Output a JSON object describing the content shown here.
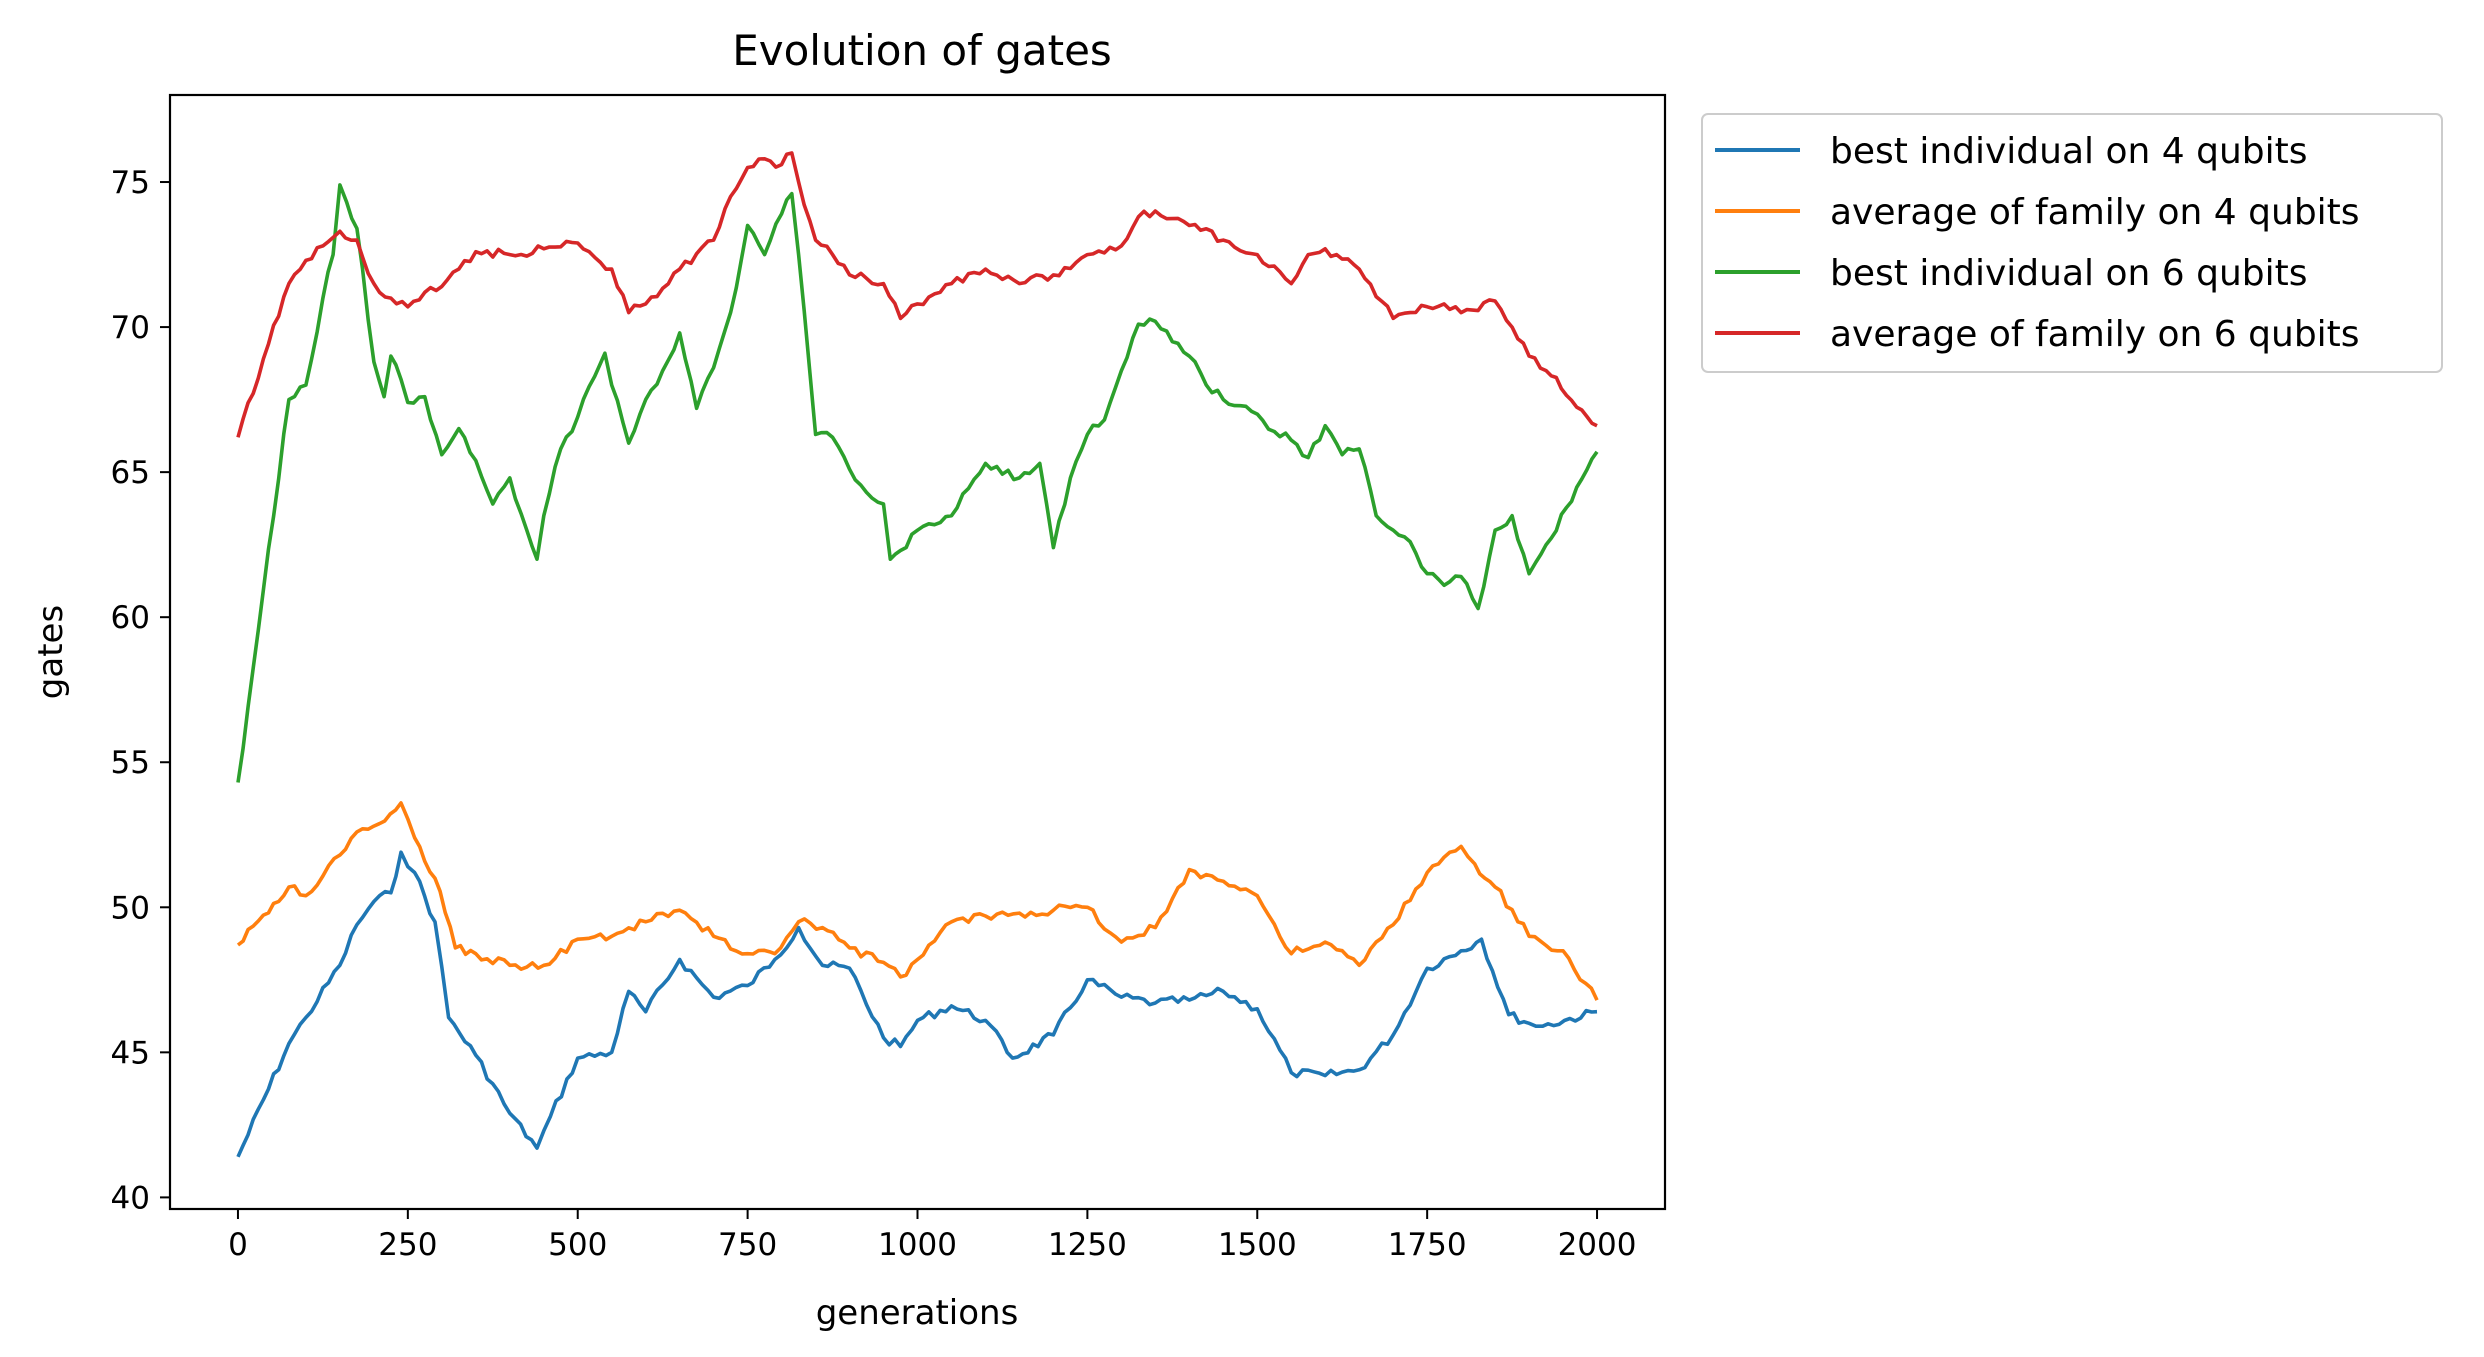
{
  "chart_data": {
    "type": "line",
    "title": "Evolution of gates",
    "xlabel": "generations",
    "ylabel": "gates",
    "xlim": [
      -100,
      2100
    ],
    "ylim": [
      39.6,
      78.0
    ],
    "xticks": [
      0,
      250,
      500,
      750,
      1000,
      1250,
      1500,
      1750,
      2000
    ],
    "yticks": [
      40,
      45,
      50,
      55,
      60,
      65,
      70,
      75
    ],
    "grid": false,
    "legend_position": "outside-top-right",
    "series": [
      {
        "name": "best individual on 4 qubits",
        "color": "#1f77b4",
        "x": [
          0,
          75,
          100,
          150,
          175,
          200,
          225,
          240,
          260,
          290,
          310,
          350,
          400,
          440,
          460,
          500,
          550,
          575,
          600,
          650,
          700,
          750,
          790,
          825,
          860,
          900,
          950,
          975,
          1000,
          1050,
          1100,
          1140,
          1200,
          1250,
          1300,
          1350,
          1400,
          1450,
          1500,
          1550,
          1600,
          1650,
          1700,
          1750,
          1800,
          1830,
          1870,
          1900,
          1920,
          2000
        ],
        "y": [
          41.4,
          45.3,
          46.2,
          48.0,
          49.4,
          50.2,
          50.5,
          51.9,
          51.2,
          49.5,
          46.2,
          44.9,
          42.9,
          41.7,
          42.8,
          44.8,
          45.0,
          47.1,
          46.4,
          48.2,
          46.9,
          47.3,
          48.2,
          49.3,
          48.0,
          47.9,
          45.5,
          45.2,
          46.1,
          46.6,
          46.1,
          44.8,
          45.6,
          47.5,
          46.9,
          46.7,
          46.8,
          47.1,
          46.5,
          44.3,
          44.2,
          44.4,
          45.6,
          47.9,
          48.5,
          48.9,
          46.3,
          46.0,
          45.9,
          46.4
        ]
      },
      {
        "name": "average of family on 4 qubits",
        "color": "#ff7f0e",
        "x": [
          0,
          75,
          100,
          150,
          175,
          200,
          240,
          260,
          290,
          320,
          350,
          400,
          450,
          500,
          550,
          600,
          650,
          700,
          750,
          790,
          825,
          860,
          900,
          950,
          975,
          1000,
          1050,
          1100,
          1150,
          1200,
          1250,
          1300,
          1350,
          1400,
          1450,
          1500,
          1550,
          1600,
          1650,
          1700,
          1750,
          1800,
          1820,
          1850,
          1900,
          1950,
          2000
        ],
        "y": [
          48.7,
          50.7,
          50.4,
          51.8,
          52.6,
          52.8,
          53.6,
          52.4,
          51.0,
          48.6,
          48.4,
          48.0,
          48.0,
          48.9,
          49.0,
          49.5,
          49.9,
          49.0,
          48.4,
          48.4,
          49.5,
          49.3,
          48.6,
          48.1,
          47.6,
          48.2,
          49.5,
          49.7,
          49.8,
          49.9,
          50.0,
          48.8,
          49.3,
          51.3,
          50.9,
          50.4,
          48.4,
          48.8,
          48.0,
          49.4,
          51.2,
          52.1,
          51.5,
          50.7,
          49.0,
          48.5,
          46.8
        ]
      },
      {
        "name": "best individual on 6 qubits",
        "color": "#2ca02c",
        "x": [
          0,
          75,
          100,
          125,
          140,
          150,
          160,
          175,
          200,
          215,
          225,
          240,
          250,
          275,
          300,
          325,
          350,
          375,
          400,
          425,
          440,
          450,
          475,
          500,
          525,
          540,
          550,
          575,
          600,
          625,
          650,
          675,
          700,
          725,
          750,
          775,
          800,
          815,
          825,
          850,
          875,
          900,
          925,
          950,
          960,
          975,
          1000,
          1050,
          1100,
          1150,
          1180,
          1200,
          1225,
          1250,
          1275,
          1300,
          1325,
          1350,
          1375,
          1400,
          1425,
          1450,
          1500,
          1525,
          1550,
          1575,
          1600,
          1625,
          1650,
          1675,
          1700,
          1725,
          1750,
          1775,
          1800,
          1825,
          1850,
          1875,
          1900,
          1910,
          1925,
          2000
        ],
        "y": [
          54.3,
          67.5,
          68.0,
          71.0,
          72.5,
          74.9,
          74.3,
          73.4,
          68.8,
          67.6,
          69.0,
          68.2,
          67.4,
          67.6,
          65.6,
          66.5,
          65.4,
          63.9,
          64.8,
          63.0,
          62.0,
          63.5,
          65.8,
          66.9,
          68.3,
          69.1,
          68.0,
          66.0,
          67.5,
          68.5,
          69.8,
          67.2,
          68.6,
          70.5,
          73.5,
          72.5,
          73.9,
          74.6,
          72.5,
          66.3,
          66.2,
          65.1,
          64.3,
          63.9,
          62.0,
          62.3,
          63.0,
          63.5,
          65.3,
          64.8,
          65.3,
          62.4,
          64.8,
          66.3,
          66.8,
          68.5,
          70.1,
          70.2,
          69.5,
          69.0,
          68.0,
          67.5,
          67.0,
          66.4,
          66.1,
          65.5,
          66.6,
          65.6,
          65.8,
          63.5,
          63.0,
          62.6,
          61.5,
          61.1,
          61.4,
          60.3,
          63.0,
          63.5,
          61.5,
          61.9,
          62.5,
          65.7
        ]
      },
      {
        "name": "average of family on 6 qubits",
        "color": "#d62728",
        "x": [
          0,
          75,
          100,
          125,
          150,
          175,
          200,
          225,
          250,
          275,
          300,
          325,
          350,
          400,
          450,
          500,
          550,
          575,
          600,
          650,
          700,
          725,
          750,
          775,
          800,
          815,
          825,
          850,
          875,
          900,
          950,
          975,
          1000,
          1050,
          1100,
          1150,
          1200,
          1250,
          1300,
          1325,
          1350,
          1400,
          1450,
          1500,
          1550,
          1575,
          1600,
          1650,
          1700,
          1725,
          1750,
          1775,
          1800,
          1850,
          1875,
          1900,
          1925,
          2000
        ],
        "y": [
          66.2,
          71.5,
          72.3,
          72.8,
          73.3,
          73.0,
          71.5,
          71.0,
          70.7,
          71.2,
          71.4,
          72.0,
          72.6,
          72.5,
          72.7,
          72.9,
          72.0,
          70.5,
          70.8,
          72.0,
          73.0,
          74.5,
          75.5,
          75.8,
          75.6,
          76.0,
          75.0,
          73.0,
          72.5,
          71.8,
          71.5,
          70.3,
          70.8,
          71.5,
          72.0,
          71.5,
          71.8,
          72.5,
          72.8,
          73.8,
          74.0,
          73.5,
          73.0,
          72.5,
          71.5,
          72.5,
          72.7,
          72.0,
          70.3,
          70.5,
          70.7,
          70.8,
          70.5,
          70.9,
          70.0,
          69.0,
          68.5,
          66.6
        ]
      }
    ]
  }
}
